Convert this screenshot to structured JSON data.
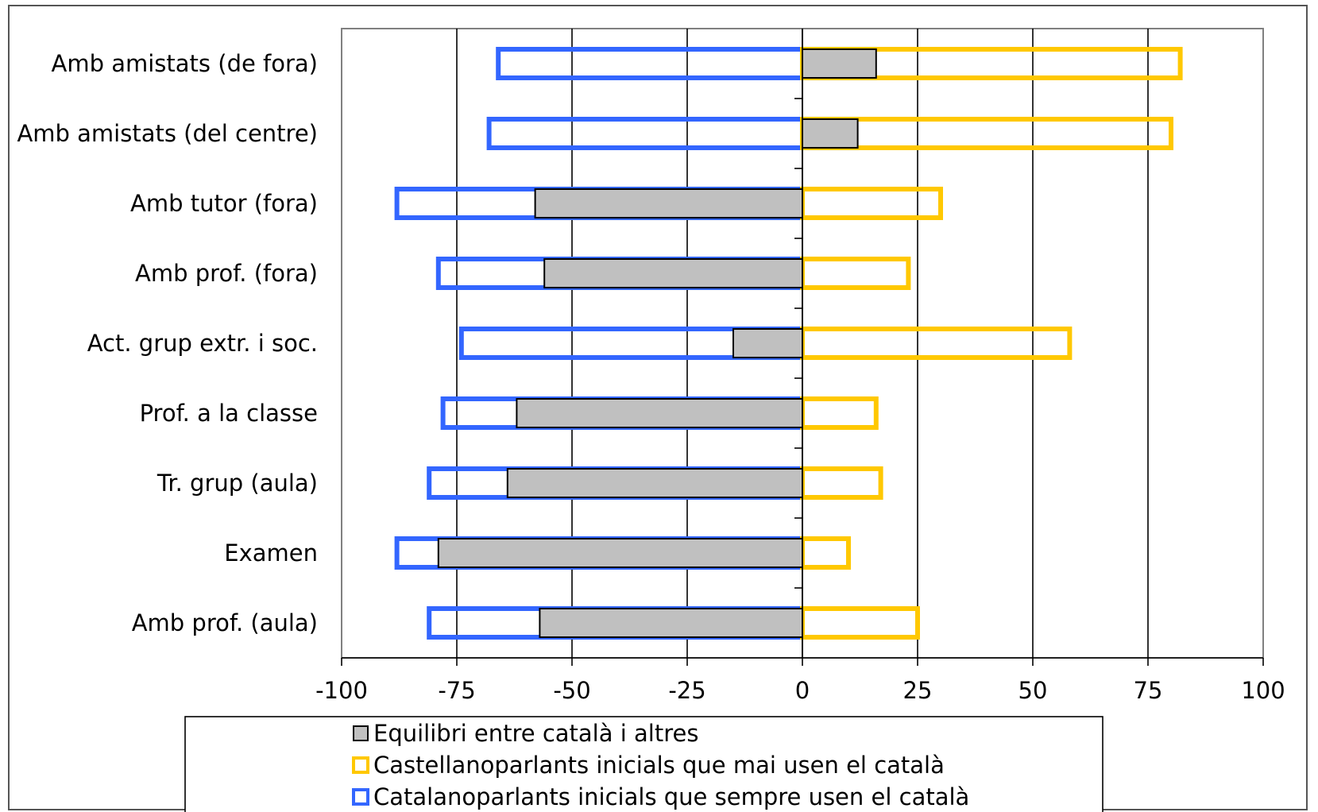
{
  "chart_data": {
    "type": "bar",
    "orientation": "horizontal",
    "categories": [
      "Amb amistats (de fora)",
      "Amb amistats (del centre)",
      "Amb tutor (fora)",
      "Amb prof. (fora)",
      "Act. grup extr. i soc.",
      "Prof. a la classe",
      "Tr. grup (aula)",
      "Examen",
      "Amb prof. (aula)"
    ],
    "series": [
      {
        "name": "Equilibri entre català i altres",
        "color": "#c0c0c0",
        "style": "filled",
        "values": [
          16,
          12,
          -58,
          -56,
          -15,
          -62,
          -64,
          -79,
          -57
        ]
      },
      {
        "name": "Castellanoparlants inicials que mai usen el català",
        "color": "#ffc800",
        "style": "outline",
        "values": [
          82,
          80,
          30,
          23,
          58,
          16,
          17,
          10,
          25
        ]
      },
      {
        "name": "Catalanoparlants inicials que sempre usen el català",
        "color": "#3366ff",
        "style": "outline",
        "values": [
          -66,
          -68,
          -88,
          -79,
          -74,
          -78,
          -81,
          -88,
          -81
        ]
      }
    ],
    "xlim": [
      -100,
      100
    ],
    "xticks": [
      -100,
      -75,
      -50,
      -25,
      0,
      25,
      50,
      75,
      100
    ],
    "grid": "vertical",
    "legend": "bottom",
    "title": "",
    "xlabel": "",
    "ylabel": ""
  }
}
